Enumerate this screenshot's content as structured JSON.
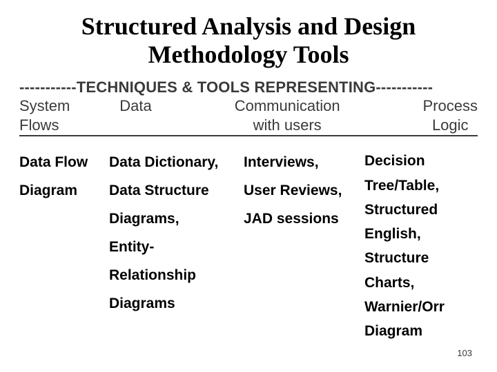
{
  "title": {
    "line1": "Structured Analysis and Design",
    "line2": "Methodology Tools"
  },
  "header": {
    "banner": "-----------TECHNIQUES & TOOLS REPRESENTING-----------",
    "columns": [
      {
        "line1": "System",
        "line2": "Flows"
      },
      {
        "line1": "Data",
        "line2": ""
      },
      {
        "line1": "Communication",
        "line2": "with users"
      },
      {
        "line1": "Process",
        "line2": "Logic"
      }
    ]
  },
  "body": {
    "col1": [
      "Data Flow",
      "Diagram"
    ],
    "col2": [
      "Data Dictionary,",
      "Data Structure",
      "Diagrams,",
      "Entity-",
      "Relationship",
      "Diagrams"
    ],
    "col3": [
      "Interviews,",
      "User Reviews,",
      "JAD sessions"
    ],
    "col4": [
      "Decision",
      "Tree/Table,",
      "Structured",
      "English,",
      "Structure",
      "Charts,",
      "Warnier/Orr",
      "Diagram"
    ]
  },
  "page_number": "103",
  "style": {
    "title_fontsize": 36,
    "header_fontsize": 22,
    "body_fontsize": 21,
    "title_font": "Times New Roman",
    "body_font": "Arial",
    "header_color": "#3a3a3a",
    "body_color": "#000000",
    "background_color": "#ffffff",
    "underline_color": "#3a3a3a"
  }
}
